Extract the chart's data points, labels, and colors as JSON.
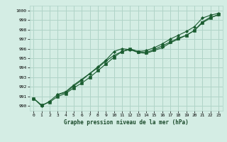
{
  "title": "Graphe pression niveau de la mer (hPa)",
  "bg_color": "#d4ede4",
  "plot_bg_color": "#d4ede4",
  "grid_color": "#b0d4c8",
  "line_color": "#1a5c30",
  "marker_color": "#1a5c30",
  "xlim": [
    -0.5,
    23.5
  ],
  "ylim": [
    989.5,
    1000.5
  ],
  "ytick_vals": [
    990,
    991,
    992,
    993,
    994,
    995,
    996,
    997,
    998,
    999,
    1000
  ],
  "xtick_vals": [
    0,
    1,
    2,
    3,
    4,
    5,
    6,
    7,
    8,
    9,
    10,
    11,
    12,
    13,
    14,
    15,
    16,
    17,
    18,
    19,
    20,
    21,
    22,
    23
  ],
  "series": [
    {
      "x": [
        0,
        1,
        2,
        3,
        4,
        5,
        6,
        7,
        8,
        9,
        10,
        11,
        12,
        13,
        14,
        15,
        16,
        17,
        18,
        19,
        20,
        21,
        22,
        23
      ],
      "y": [
        990.8,
        990.0,
        990.5,
        991.2,
        991.4,
        992.1,
        992.7,
        993.4,
        994.1,
        994.8,
        995.7,
        996.0,
        995.9,
        995.7,
        995.8,
        996.1,
        996.5,
        997.0,
        997.4,
        997.8,
        998.3,
        999.2,
        999.5,
        999.7
      ],
      "marker": "D"
    },
    {
      "x": [
        0,
        1,
        2,
        3,
        4,
        5,
        6,
        7,
        8,
        9,
        10,
        11,
        12,
        13,
        14,
        15,
        16,
        17,
        18,
        19,
        20,
        21,
        22,
        23
      ],
      "y": [
        990.8,
        990.1,
        990.4,
        991.0,
        991.3,
        991.9,
        992.4,
        993.0,
        993.7,
        994.4,
        995.1,
        995.7,
        996.0,
        995.7,
        995.6,
        995.9,
        996.3,
        996.7,
        997.1,
        997.4,
        997.9,
        998.7,
        999.2,
        999.6
      ],
      "marker": "s"
    },
    {
      "x": [
        3,
        4,
        5,
        6,
        7,
        8,
        9,
        10,
        11,
        12,
        13,
        14,
        15,
        16,
        17,
        18,
        19,
        20,
        21,
        22,
        23
      ],
      "y": [
        991.2,
        991.5,
        992.2,
        992.8,
        993.4,
        994.0,
        994.7,
        995.3,
        995.7,
        995.9,
        995.6,
        995.5,
        995.8,
        996.1,
        996.6,
        997.0,
        997.4,
        997.9,
        998.8,
        999.3,
        999.5
      ],
      "marker": ">"
    }
  ]
}
